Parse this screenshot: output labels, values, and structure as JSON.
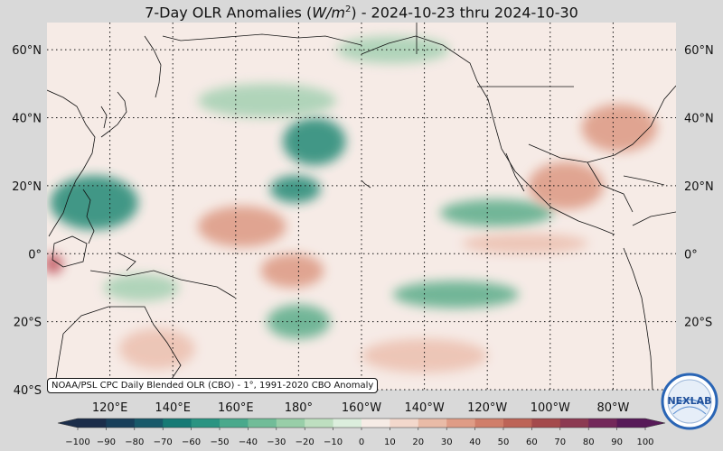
{
  "title": {
    "prefix": "7-Day OLR Anomalies (",
    "unit_main": "W/m",
    "unit_exp": "2",
    "suffix": ") - 2024-10-23 thru 2024-10-30"
  },
  "map": {
    "lon_range_deg_east": [
      100,
      300
    ],
    "lat_range_deg": [
      -40,
      68
    ],
    "gridline_lons_deg_east": [
      120,
      140,
      160,
      180,
      200,
      220,
      240,
      260,
      280
    ],
    "gridline_lats_deg": [
      -40,
      -20,
      0,
      20,
      40,
      60
    ],
    "gridlines": "dotted",
    "lat_labels": [
      "60°N",
      "40°N",
      "20°N",
      "0°",
      "20°S",
      "40°S"
    ],
    "lon_labels": [
      "120°E",
      "140°E",
      "160°E",
      "180°",
      "160°W",
      "140°W",
      "120°W",
      "100°W",
      "80°W"
    ],
    "anomaly_regions": [
      {
        "sign": "negative",
        "strength": "strong",
        "lon": 115,
        "lat": 15,
        "rx": 14,
        "ry": 8
      },
      {
        "sign": "negative",
        "strength": "strong",
        "lon": 185,
        "lat": 33,
        "rx": 10,
        "ry": 7
      },
      {
        "sign": "negative",
        "strength": "strong",
        "lon": 179,
        "lat": 19,
        "rx": 8,
        "ry": 4
      },
      {
        "sign": "negative",
        "strength": "moderate",
        "lon": 180,
        "lat": -20,
        "rx": 10,
        "ry": 5
      },
      {
        "sign": "negative",
        "strength": "moderate",
        "lon": 230,
        "lat": -12,
        "rx": 20,
        "ry": 4
      },
      {
        "sign": "negative",
        "strength": "moderate",
        "lon": 243,
        "lat": 12,
        "rx": 18,
        "ry": 4
      },
      {
        "sign": "negative",
        "strength": "weak",
        "lon": 170,
        "lat": 45,
        "rx": 22,
        "ry": 5
      },
      {
        "sign": "negative",
        "strength": "weak",
        "lon": 130,
        "lat": -10,
        "rx": 12,
        "ry": 4
      },
      {
        "sign": "negative",
        "strength": "weak",
        "lon": 210,
        "lat": 60,
        "rx": 18,
        "ry": 4
      },
      {
        "sign": "positive",
        "strength": "moderate",
        "lon": 162,
        "lat": 8,
        "rx": 14,
        "ry": 6
      },
      {
        "sign": "positive",
        "strength": "moderate",
        "lon": 178,
        "lat": -5,
        "rx": 10,
        "ry": 5
      },
      {
        "sign": "positive",
        "strength": "moderate",
        "lon": 265,
        "lat": 20,
        "rx": 12,
        "ry": 7
      },
      {
        "sign": "positive",
        "strength": "moderate",
        "lon": 282,
        "lat": 37,
        "rx": 12,
        "ry": 7
      },
      {
        "sign": "positive",
        "strength": "weak",
        "lon": 252,
        "lat": 3,
        "rx": 20,
        "ry": 3
      },
      {
        "sign": "positive",
        "strength": "weak",
        "lon": 135,
        "lat": -28,
        "rx": 12,
        "ry": 6
      },
      {
        "sign": "positive",
        "strength": "weak",
        "lon": 220,
        "lat": -30,
        "rx": 20,
        "ry": 5
      },
      {
        "sign": "positive",
        "strength": "strong",
        "lon": 102,
        "lat": -3,
        "rx": 3,
        "ry": 3
      }
    ]
  },
  "colorbar": {
    "min": -100,
    "max": 100,
    "step": 10,
    "colors": [
      "#1b2d4a",
      "#183f5a",
      "#18596a",
      "#167a75",
      "#2a9482",
      "#4aa98c",
      "#71bc98",
      "#98cea8",
      "#bedfc0",
      "#dceedd",
      "#f6ece6",
      "#f3d8cc",
      "#e9bba7",
      "#df9c86",
      "#d07e6a",
      "#bd6457",
      "#a44a4c",
      "#8c3a52",
      "#73285a",
      "#571a58"
    ],
    "tick_labels": [
      "−100",
      "−90",
      "−80",
      "−70",
      "−60",
      "−50",
      "−40",
      "−30",
      "−20",
      "−10",
      "0",
      "10",
      "20",
      "30",
      "40",
      "50",
      "60",
      "70",
      "80",
      "90",
      "100"
    ]
  },
  "credit": "NOAA/PSL CPC Daily Blended OLR (CBO) - 1°, 1991-2020 CBO Anomaly",
  "logo": {
    "text": "NEXLAB",
    "ring_color": "#2a65b5"
  }
}
